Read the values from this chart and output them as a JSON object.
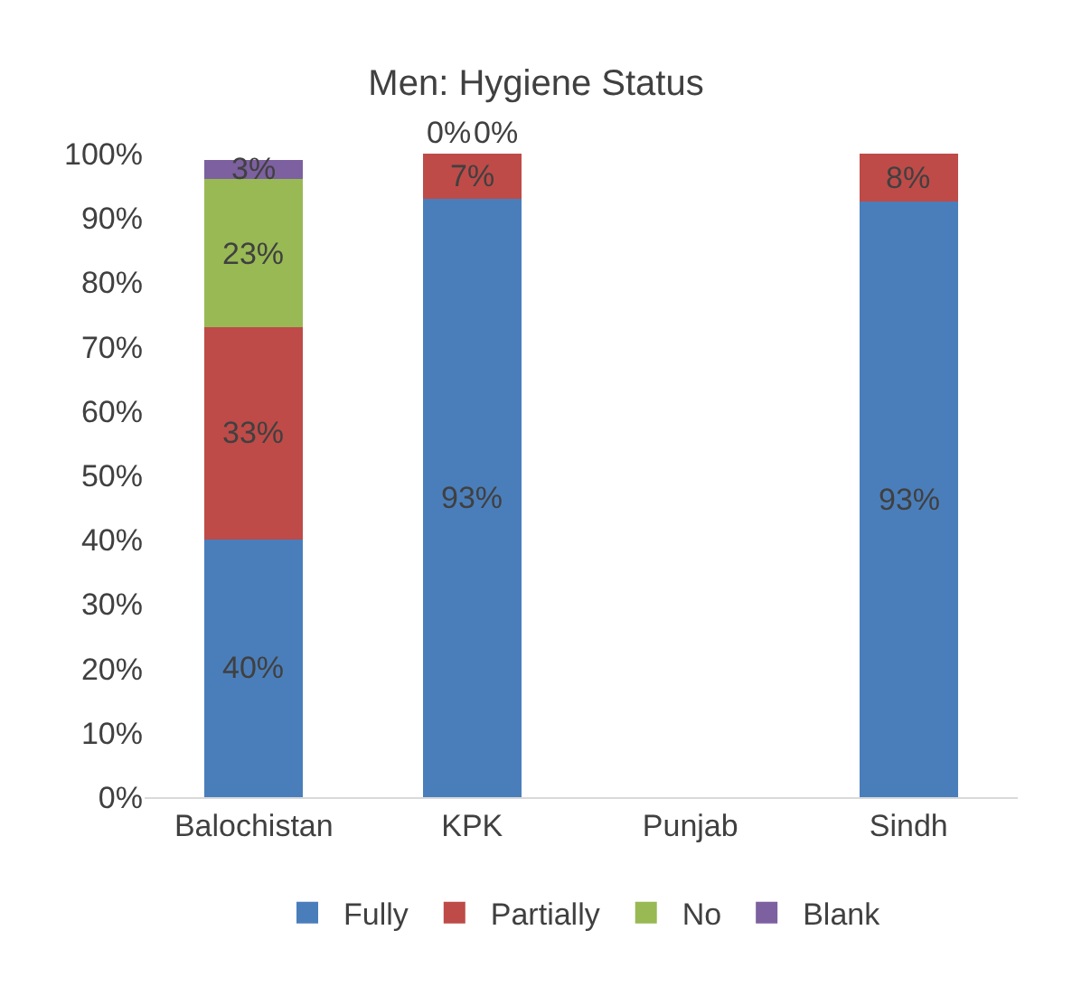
{
  "chart_data": {
    "type": "bar",
    "title": "Men: Hygiene Status",
    "stacked": true,
    "categories": [
      "Balochistan",
      "KPK",
      "Punjab",
      "Sindh"
    ],
    "series": [
      {
        "name": "Fully",
        "color": "#4a7ebb",
        "values": [
          40,
          93,
          null,
          92.5
        ],
        "value_labels": [
          "40%",
          "93%",
          null,
          "93%"
        ]
      },
      {
        "name": "Partially",
        "color": "#be4b48",
        "values": [
          33,
          7,
          null,
          7.5
        ],
        "value_labels": [
          "33%",
          "7%",
          null,
          "8%"
        ]
      },
      {
        "name": "No",
        "color": "#98b954",
        "values": [
          23,
          0,
          null,
          null
        ],
        "value_labels": [
          "23%",
          "0%",
          null,
          null
        ]
      },
      {
        "name": "Blank",
        "color": "#7d60a0",
        "values": [
          3,
          0,
          null,
          null
        ],
        "value_labels": [
          "3%",
          "0%",
          null,
          null
        ]
      }
    ],
    "ylim": [
      0,
      100
    ],
    "yticks": [
      {
        "value": 0,
        "label": "0%"
      },
      {
        "value": 10,
        "label": "10%"
      },
      {
        "value": 20,
        "label": "20%"
      },
      {
        "value": 30,
        "label": "30%"
      },
      {
        "value": 40,
        "label": "40%"
      },
      {
        "value": 50,
        "label": "50%"
      },
      {
        "value": 60,
        "label": "60%"
      },
      {
        "value": 70,
        "label": "70%"
      },
      {
        "value": 80,
        "label": "80%"
      },
      {
        "value": 90,
        "label": "90%"
      },
      {
        "value": 100,
        "label": "100%"
      }
    ],
    "grid": false,
    "legend": "bottom"
  }
}
